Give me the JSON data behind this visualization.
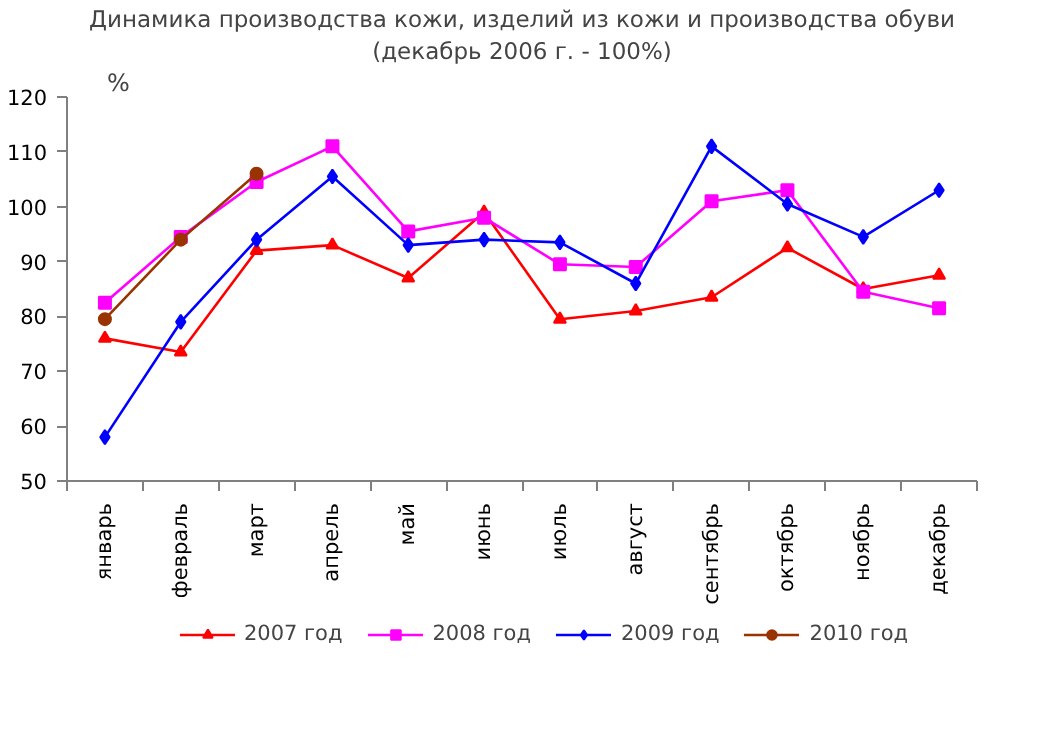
{
  "chart_data": {
    "type": "line",
    "title": "Динамика производства кожи, изделий из кожи и производства обуви",
    "subtitle": "(декабрь 2006 г. - 100%)",
    "ylabel": "%",
    "categories": [
      "январь",
      "февраль",
      "март",
      "апрель",
      "май",
      "июнь",
      "июль",
      "август",
      "сентябрь",
      "октябрь",
      "ноябрь",
      "декабрь"
    ],
    "series": [
      {
        "name": "2007 год",
        "color": "#ff0000",
        "marker": "triangle",
        "values": [
          76,
          73.5,
          92,
          93,
          87,
          99,
          79.5,
          81,
          83.5,
          92.5,
          85,
          87.5
        ]
      },
      {
        "name": "2008 год",
        "color": "#ff00ff",
        "marker": "square",
        "values": [
          82.5,
          94.5,
          104.5,
          111,
          95.5,
          98,
          89.5,
          89,
          101,
          103,
          84.5,
          81.5
        ]
      },
      {
        "name": "2009 год",
        "color": "#0000ff",
        "marker": "diamond",
        "values": [
          58,
          79,
          94,
          105.5,
          93,
          94,
          93.5,
          86,
          111,
          100.5,
          94.5,
          103
        ]
      },
      {
        "name": "2010 год",
        "color": "#993300",
        "marker": "circle",
        "values": [
          79.5,
          94,
          106,
          null,
          null,
          null,
          null,
          null,
          null,
          null,
          null,
          null
        ]
      }
    ],
    "ylim": [
      50,
      120
    ],
    "yticks": [
      50,
      60,
      70,
      80,
      90,
      100,
      110,
      120
    ],
    "grid": false,
    "legend": "bottom"
  }
}
